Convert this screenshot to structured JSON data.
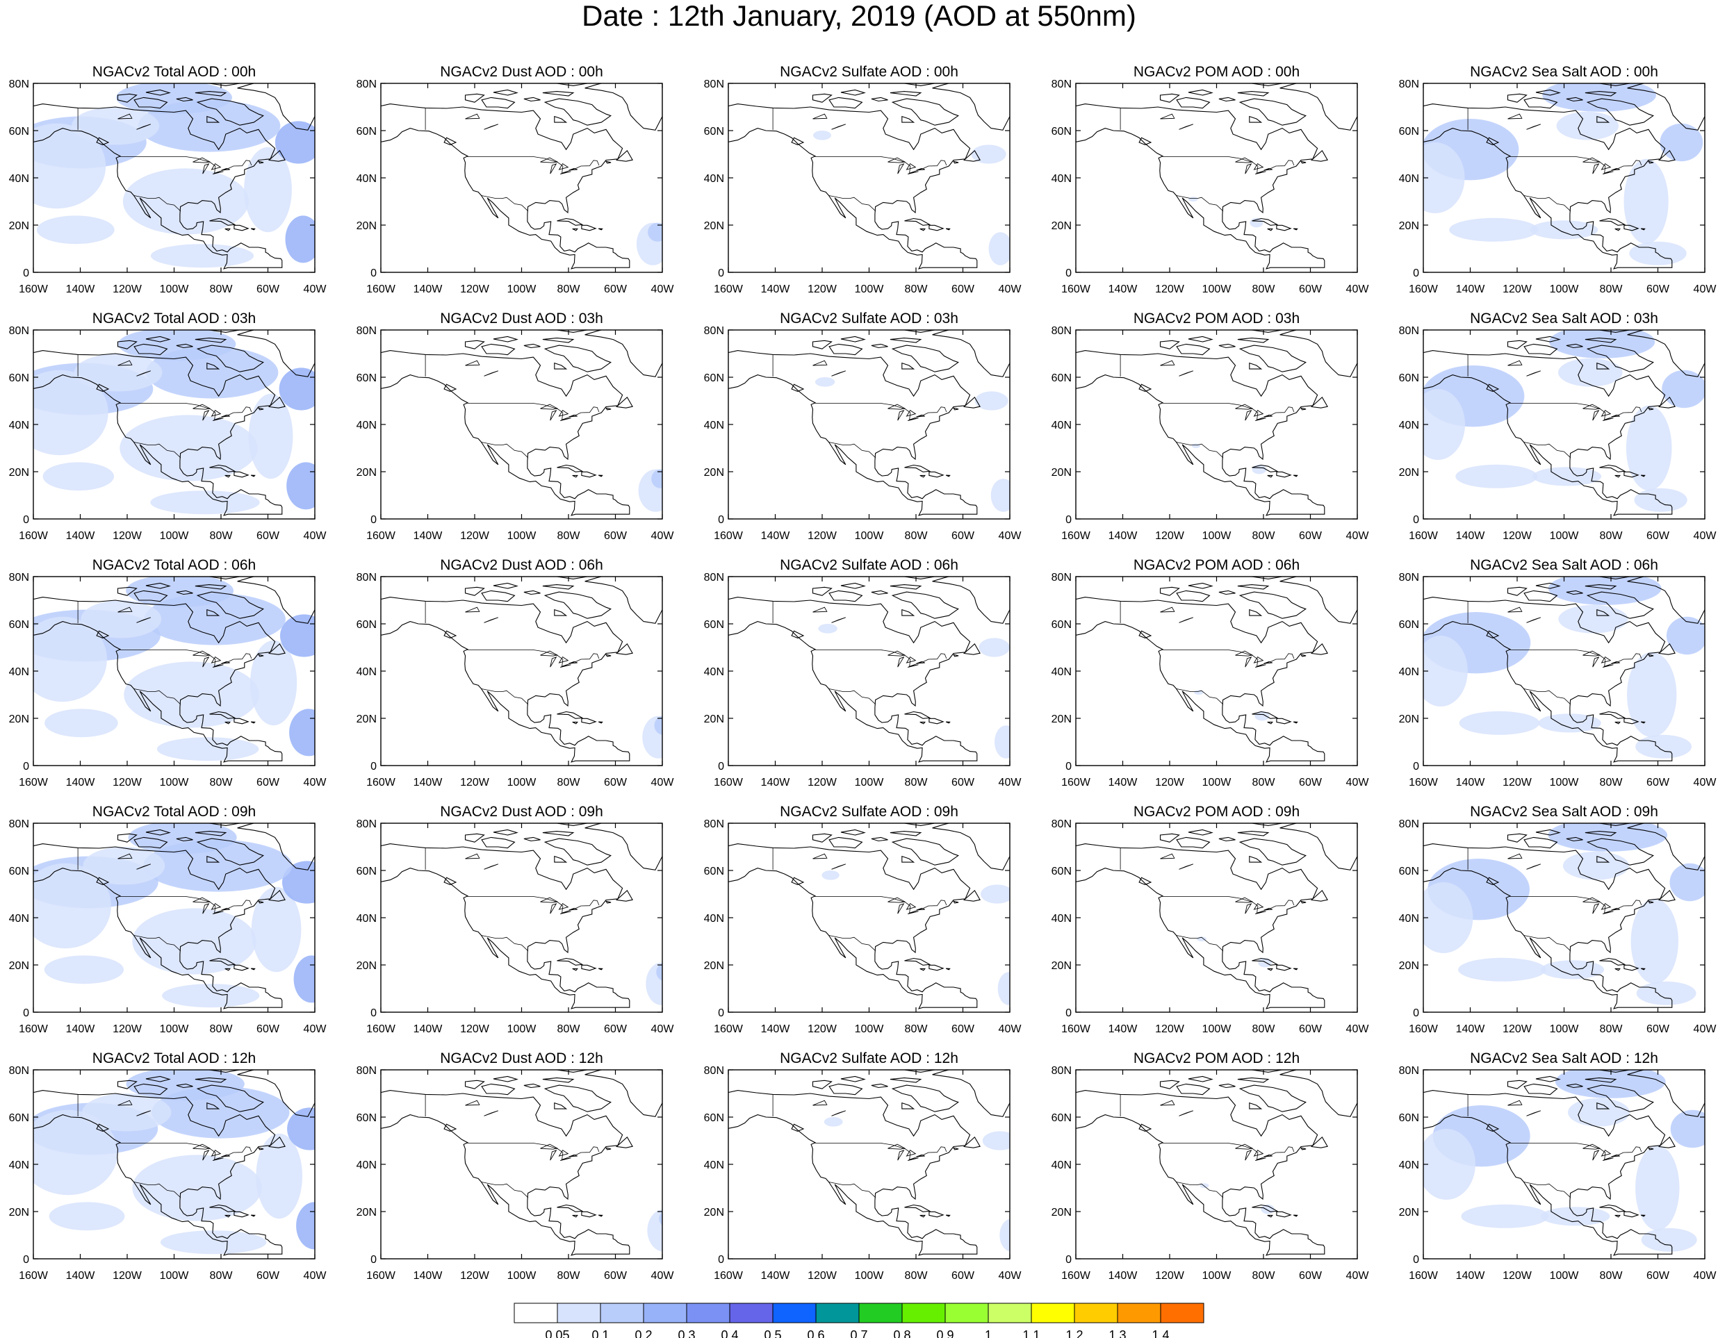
{
  "title": "Date : 12th January, 2019 (AOD at 550nm)",
  "lat_ticks": [
    "0",
    "20N",
    "40N",
    "60N",
    "80N"
  ],
  "lon_ticks": [
    "160W",
    "140W",
    "120W",
    "100W",
    "80W",
    "60W",
    "40W"
  ],
  "columns": [
    {
      "species": "total",
      "titles": [
        "NGACv2 Total AOD : 00h",
        "NGACv2 Total AOD : 03h",
        "NGACv2 Total AOD : 06h",
        "NGACv2 Total AOD : 09h",
        "NGACv2 Total AOD  : 12h"
      ]
    },
    {
      "species": "dust",
      "titles": [
        "NGACv2 Dust AOD : 00h",
        "NGACv2 Dust AOD : 03h",
        "NGACv2 Dust AOD : 06h",
        "NGACv2 Dust AOD : 09h",
        "NGACv2 Dust AOD : 12h"
      ]
    },
    {
      "species": "sulfate",
      "titles": [
        "NGACv2 Sulfate AOD : 00h",
        "NGACv2 Sulfate AOD : 03h",
        "NGACv2 Sulfate AOD : 06h",
        "NGACv2 Sulfate AOD : 09h",
        "NGACv2 Sulfate AOD : 12h"
      ]
    },
    {
      "species": "pom",
      "titles": [
        "NGACv2 POM AOD : 00h",
        "NGACv2 POM AOD : 03h",
        "NGACv2 POM AOD : 06h",
        "NGACv2 POM AOD : 09h",
        "NGACv2 POM  AOD : 12h"
      ]
    },
    {
      "species": "seasalt",
      "titles": [
        "NGACv2 Sea Salt AOD : 00h",
        "NGACv2 Sea Salt AOD : 03h",
        "NGACv2 Sea Salt AOD : 06h",
        "NGACv2 Sea Salt  AOD : 09h",
        "NGACv2 Sea Salt  AOD : 12h"
      ]
    }
  ],
  "colorbar": {
    "labels": [
      "0.05",
      "0.1",
      "0.2",
      "0.3",
      "0.4",
      "0.5",
      "0.6",
      "0.7",
      "0.8",
      "0.9",
      "1",
      "1.1",
      "1.2",
      "1.3",
      "1.4"
    ],
    "colors": [
      "#ffffff",
      "#d7e3fd",
      "#b9cdfb",
      "#97b2f8",
      "#7b92f4",
      "#6565e9",
      "#0f63ff",
      "#00969a",
      "#22cc22",
      "#66f000",
      "#99ff33",
      "#ccff66",
      "#ffff00",
      "#ffcc00",
      "#ff9900",
      "#ff6f00",
      "#ff2a1a"
    ]
  }
}
